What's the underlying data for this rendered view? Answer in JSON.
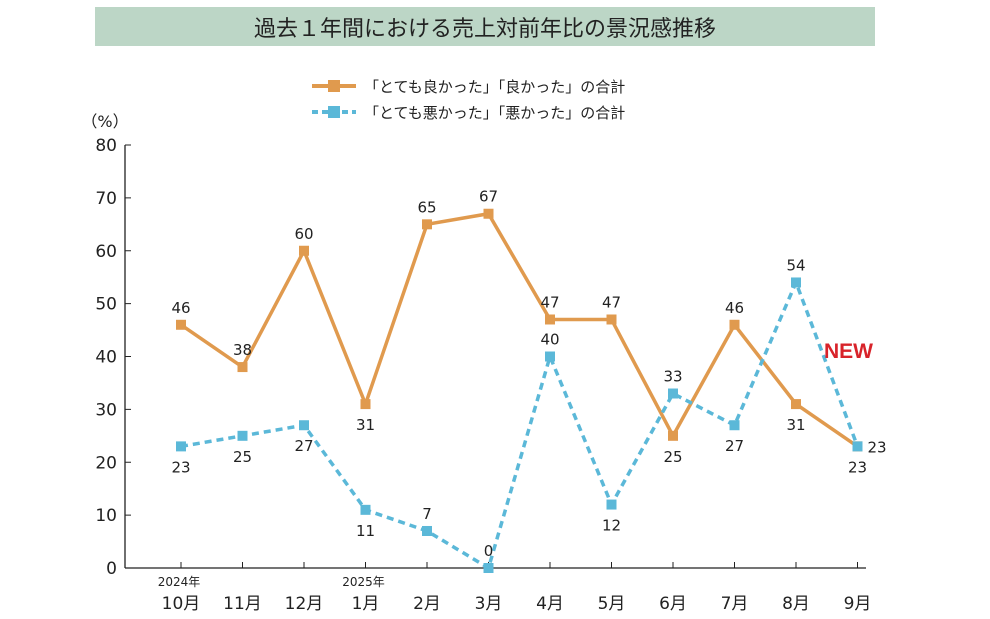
{
  "chart_data": {
    "type": "line",
    "title": "過去１年間における売上対前年比の景況感推移",
    "ylabel": "（%）",
    "ylim": [
      0,
      80
    ],
    "yticks": [
      0,
      10,
      20,
      30,
      40,
      50,
      60,
      70,
      80
    ],
    "categories": [
      "10月",
      "11月",
      "12月",
      "1月",
      "2月",
      "3月",
      "4月",
      "5月",
      "6月",
      "7月",
      "8月",
      "9月"
    ],
    "year_labels": {
      "0": "2024年",
      "3": "2025年"
    },
    "grid": false,
    "legend_position": "top-center",
    "series": [
      {
        "name": "「とても良かった」「良かった」の合計",
        "color": "#e09a4e",
        "style": "solid",
        "values": [
          46,
          38,
          60,
          31,
          65,
          67,
          47,
          47,
          25,
          46,
          31,
          23
        ]
      },
      {
        "name": "「とても悪かった」「悪かった」の合計",
        "color": "#5bb8d8",
        "style": "dashed",
        "values": [
          23,
          25,
          27,
          11,
          7,
          0,
          40,
          12,
          33,
          27,
          54,
          23
        ]
      }
    ],
    "annotation": "NEW"
  }
}
